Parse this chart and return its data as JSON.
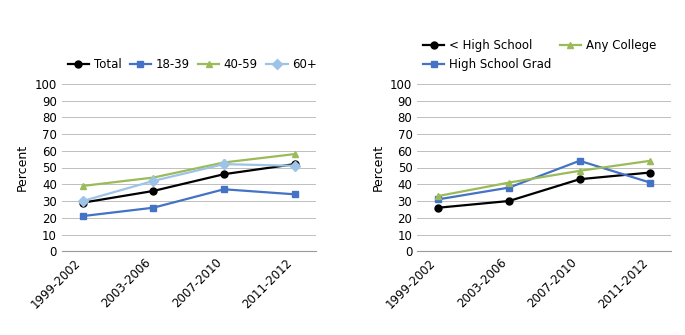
{
  "x_labels": [
    "1999-2002",
    "2003-2006",
    "2007-2010",
    "2011-2012"
  ],
  "x_positions": [
    0,
    1,
    2,
    3
  ],
  "chart1": {
    "series": [
      {
        "label": "Total",
        "values": [
          29,
          36,
          46,
          52
        ],
        "color": "#000000",
        "marker": "o",
        "linestyle": "-"
      },
      {
        "label": "18-39",
        "values": [
          21,
          26,
          37,
          34
        ],
        "color": "#4472C4",
        "marker": "s",
        "linestyle": "-"
      },
      {
        "label": "40-59",
        "values": [
          39,
          44,
          53,
          58
        ],
        "color": "#9BBB59",
        "marker": "^",
        "linestyle": "-"
      },
      {
        "label": "60+",
        "values": [
          30,
          42,
          52,
          51
        ],
        "color": "#9DC3E6",
        "marker": "D",
        "linestyle": "-"
      }
    ],
    "legend_ncol": 4,
    "legend_order": [
      0,
      1,
      2,
      3
    ]
  },
  "chart2": {
    "series": [
      {
        "label": "< High School",
        "values": [
          26,
          30,
          43,
          47
        ],
        "color": "#000000",
        "marker": "o",
        "linestyle": "-"
      },
      {
        "label": "High School Grad",
        "values": [
          31,
          38,
          54,
          41
        ],
        "color": "#4472C4",
        "marker": "s",
        "linestyle": "-"
      },
      {
        "label": "Any College",
        "values": [
          33,
          41,
          48,
          54
        ],
        "color": "#9BBB59",
        "marker": "^",
        "linestyle": "-"
      }
    ],
    "legend_ncol": 2,
    "legend_order": [
      0,
      1,
      2
    ]
  },
  "ylabel": "Percent",
  "ylim": [
    0,
    100
  ],
  "yticks": [
    0,
    10,
    20,
    30,
    40,
    50,
    60,
    70,
    80,
    90,
    100
  ],
  "grid_color": "#BFBFBF",
  "background_color": "#FFFFFF",
  "marker_size": 5,
  "linewidth": 1.6,
  "legend_fontsize": 8.5,
  "tick_fontsize": 8.5,
  "ylabel_fontsize": 9
}
